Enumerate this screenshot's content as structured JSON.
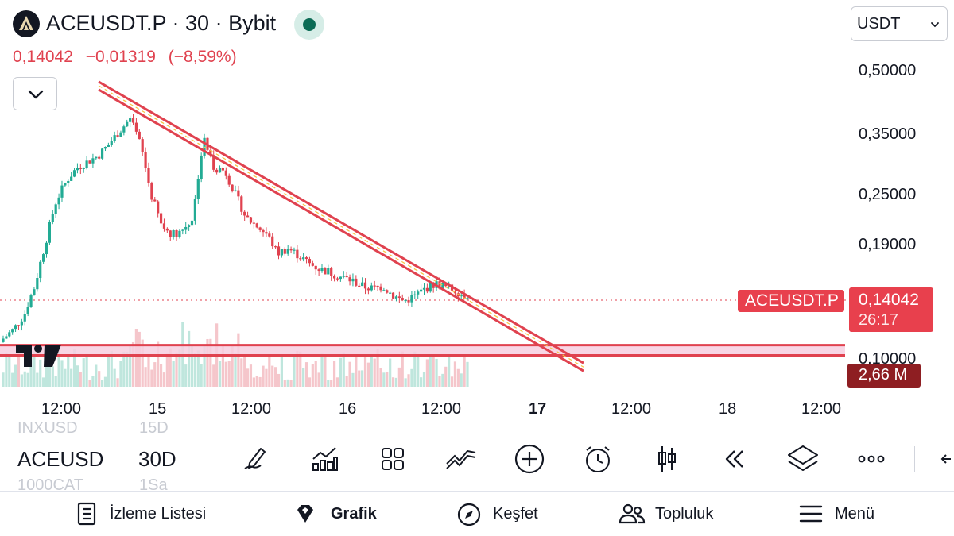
{
  "header": {
    "symbol_title": "ACEUSDT.P · 30 · Bybit",
    "last_price": "0,14042",
    "change_abs": "−0,01319",
    "change_pct": "(−8,59%)",
    "currency": "USDT",
    "logo_icon": "ace-logo-icon",
    "live_indicator": "market-open-dot"
  },
  "chart_data": {
    "type": "candlestick",
    "symbol": "ACEUSDT.P",
    "interval": "30",
    "exchange": "Bybit",
    "scale": "log",
    "y_ticks": [
      "0,50000",
      "0,35000",
      "0,25000",
      "0,19000",
      "0,10000"
    ],
    "x_ticks": [
      "12:00",
      "15",
      "12:00",
      "16",
      "12:00",
      "17",
      "12:00",
      "18",
      "12:00"
    ],
    "last_price_label": "0,14042",
    "countdown": "26:17",
    "series_label": "ACEUSDT.P",
    "volume_label": "2,66 M",
    "close_path": [
      0.112,
      0.118,
      0.128,
      0.15,
      0.19,
      0.24,
      0.27,
      0.29,
      0.3,
      0.31,
      0.33,
      0.355,
      0.38,
      0.33,
      0.25,
      0.21,
      0.2,
      0.205,
      0.22,
      0.34,
      0.29,
      0.285,
      0.25,
      0.22,
      0.21,
      0.2,
      0.18,
      0.185,
      0.178,
      0.17,
      0.165,
      0.162,
      0.158,
      0.155,
      0.15,
      0.148,
      0.15,
      0.142,
      0.138,
      0.142,
      0.148,
      0.152,
      0.149,
      0.146,
      0.1404
    ],
    "trendline": {
      "from_price": 0.46,
      "to_price": 0.096
    },
    "support_zone": {
      "upper": 0.108,
      "lower": 0.102
    },
    "colors": {
      "up": "#22ab94",
      "down": "#e0424f",
      "trendline": "#e0424f",
      "zone_fill": "#f7cfe0"
    }
  },
  "toolbar": {
    "watch_symbol": "ACEUSD",
    "watch_interval": "30D",
    "ghost_prev_symbol": "INXUSD",
    "ghost_prev_interval": "15D",
    "ghost_next_symbol": "1000CAT",
    "ghost_next_interval": "1Sa",
    "icons": [
      "drawing-pen-icon",
      "indicators-icon",
      "layout-grid-icon",
      "compare-icon",
      "add-icon",
      "alert-clock-icon",
      "candles-icon",
      "replay-icon",
      "layers-icon",
      "more-icon",
      "back-arrow-icon"
    ]
  },
  "nav": {
    "items": [
      {
        "label": "İzleme Listesi",
        "icon": "watchlist-icon"
      },
      {
        "label": "Grafik",
        "icon": "chart-gem-icon"
      },
      {
        "label": "Keşfet",
        "icon": "compass-icon"
      },
      {
        "label": "Topluluk",
        "icon": "community-icon"
      },
      {
        "label": "Menü",
        "icon": "menu-icon"
      }
    ]
  }
}
